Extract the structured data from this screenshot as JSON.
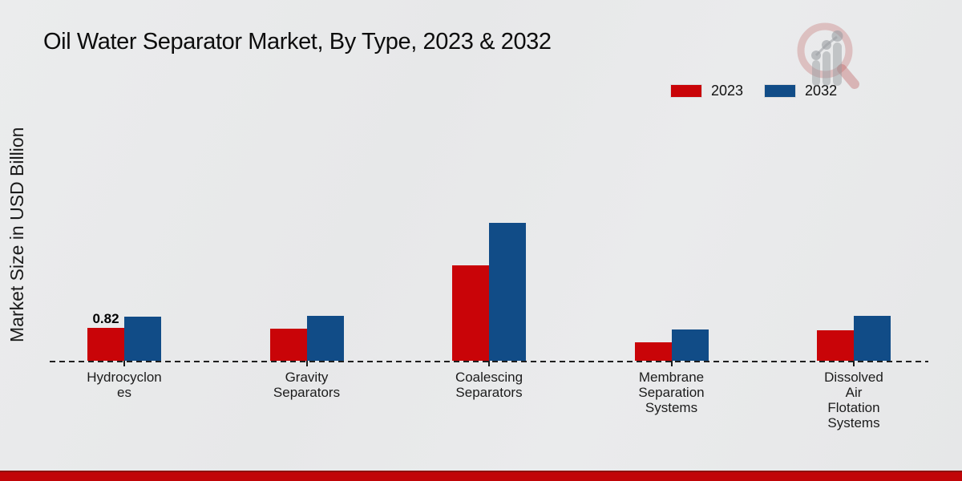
{
  "colors": {
    "background": "#e8e9ea",
    "series_2023": "#c90408",
    "series_2032": "#114c87",
    "footer_stripe": "#c10508",
    "footer_stripe_edge": "#8d1210",
    "axis_line": "#1f1f1f",
    "text": "#1a1a1a",
    "watermark_red": "#c05e5e",
    "watermark_gray": "#9a9da2"
  },
  "watermark_icon": "magnifier-bar-chart-logo",
  "chart_data": {
    "type": "bar",
    "title": "Oil Water Separator Market, By Type, 2023 & 2032",
    "ylabel": "Market Size in USD Billion",
    "xlabel": "",
    "categories": [
      "Hydrocyclones",
      "Gravity Separators",
      "Coalescing Separators",
      "Membrane Separation Systems",
      "Dissolved Air Flotation Systems"
    ],
    "category_label_lines": [
      [
        "Hydrocyclon",
        "es"
      ],
      [
        "Gravity",
        "Separators"
      ],
      [
        "Coalescing",
        "Separators"
      ],
      [
        "Membrane",
        "Separation",
        "Systems"
      ],
      [
        "Dissolved",
        "Air",
        "Flotation",
        "Systems"
      ]
    ],
    "series": [
      {
        "name": "2023",
        "color": "#c90408",
        "values": [
          0.82,
          0.8,
          2.38,
          0.46,
          0.76
        ]
      },
      {
        "name": "2032",
        "color": "#114c87",
        "values": [
          1.1,
          1.12,
          3.44,
          0.78,
          1.12
        ]
      }
    ],
    "annotations": [
      {
        "category_index": 0,
        "series_index": 0,
        "text": "0.82"
      }
    ],
    "ylim": [
      0,
      4
    ],
    "grid": false,
    "legend_position": "top-right",
    "baseline_style": "dashed"
  }
}
